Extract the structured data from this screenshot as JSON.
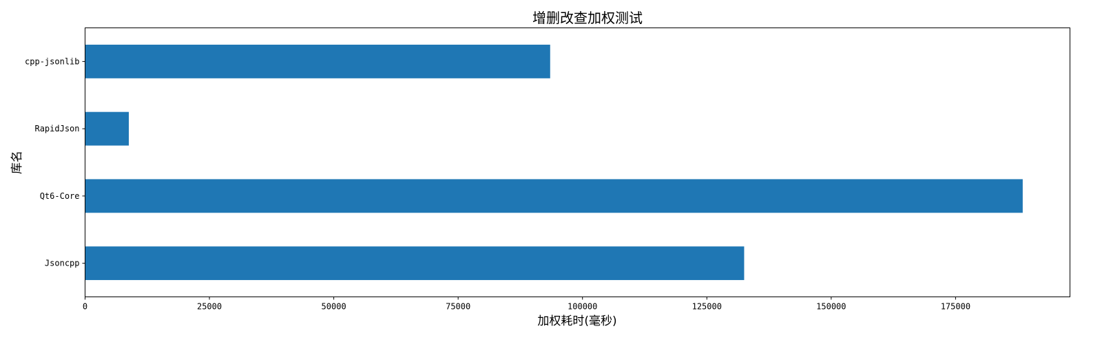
{
  "chart_data": {
    "type": "bar",
    "orientation": "horizontal",
    "title": "增删改查加权测试",
    "xlabel": "加权耗时(毫秒)",
    "ylabel": "库名",
    "categories": [
      "Jsoncpp",
      "Qt6-Core",
      "RapidJson",
      "cpp-jsonlib"
    ],
    "values": [
      132500,
      188500,
      8800,
      93500
    ],
    "xlim": [
      0,
      198000
    ],
    "xticks": [
      0,
      25000,
      50000,
      75000,
      100000,
      125000,
      150000,
      175000
    ],
    "bar_color": "#1f77b4",
    "grid": false,
    "legend": "none"
  }
}
